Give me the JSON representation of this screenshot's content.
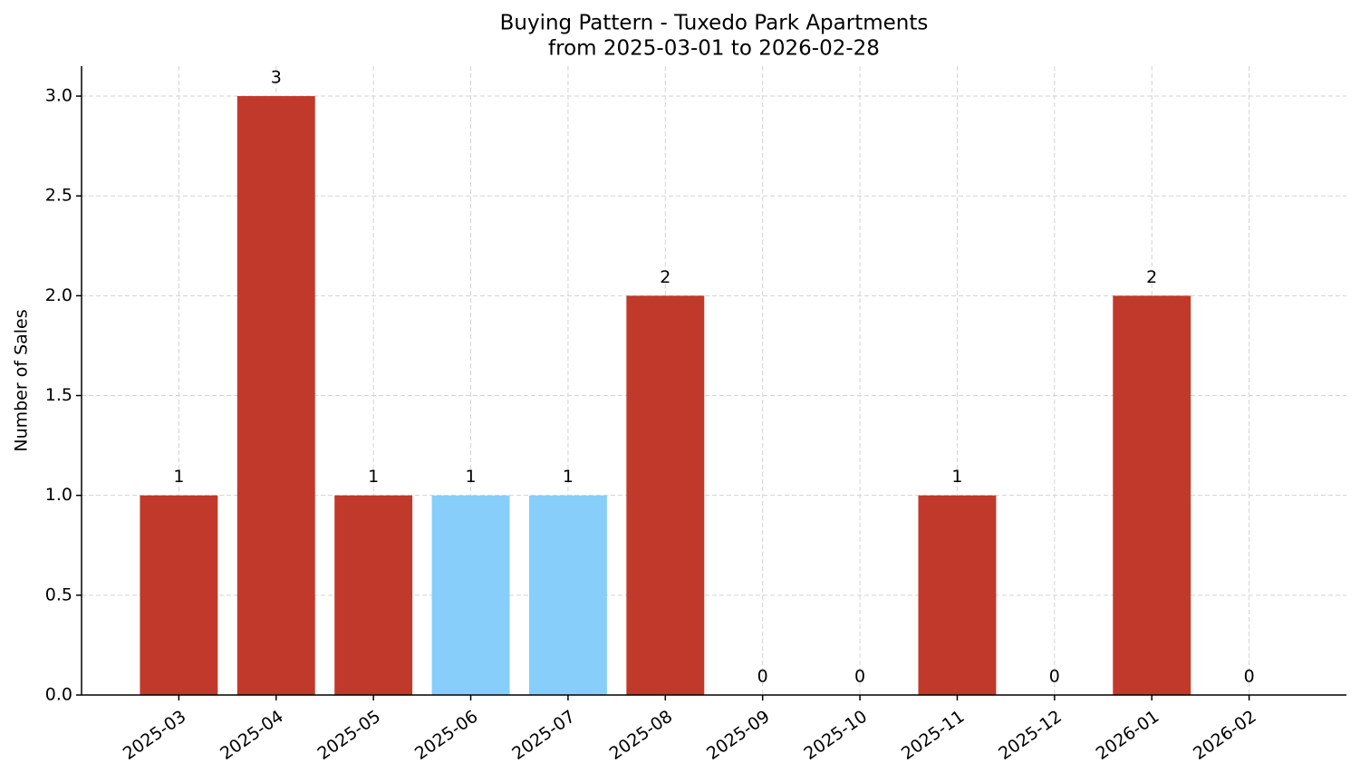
{
  "chart_data": {
    "type": "bar",
    "title": "Buying Pattern - Tuxedo Park Apartments",
    "subtitle": "from 2025-03-01 to 2026-02-28",
    "y_label": "Number of Sales",
    "categories": [
      "2025-03",
      "2025-04",
      "2025-05",
      "2025-06",
      "2025-07",
      "2025-08",
      "2025-09",
      "2025-10",
      "2025-11",
      "2025-12",
      "2026-01",
      "2026-02"
    ],
    "values": [
      1,
      3,
      1,
      1,
      1,
      2,
      0,
      0,
      1,
      0,
      2,
      0
    ],
    "colors": [
      "#c0392b",
      "#c0392b",
      "#c0392b",
      "#87cefa",
      "#87cefa",
      "#c0392b",
      "#c0392b",
      "#c0392b",
      "#c0392b",
      "#c0392b",
      "#c0392b",
      "#c0392b"
    ],
    "ylim": [
      0,
      3.15
    ],
    "yticks": [
      {
        "value": 0,
        "label": "0.0"
      },
      {
        "value": 0.5,
        "label": "0.5"
      },
      {
        "value": 1,
        "label": "1.0"
      },
      {
        "value": 1.5,
        "label": "1.5"
      },
      {
        "value": 2,
        "label": "2.0"
      },
      {
        "value": 2.5,
        "label": "2.5"
      },
      {
        "value": 3,
        "label": "3.0"
      }
    ],
    "grid": true
  }
}
